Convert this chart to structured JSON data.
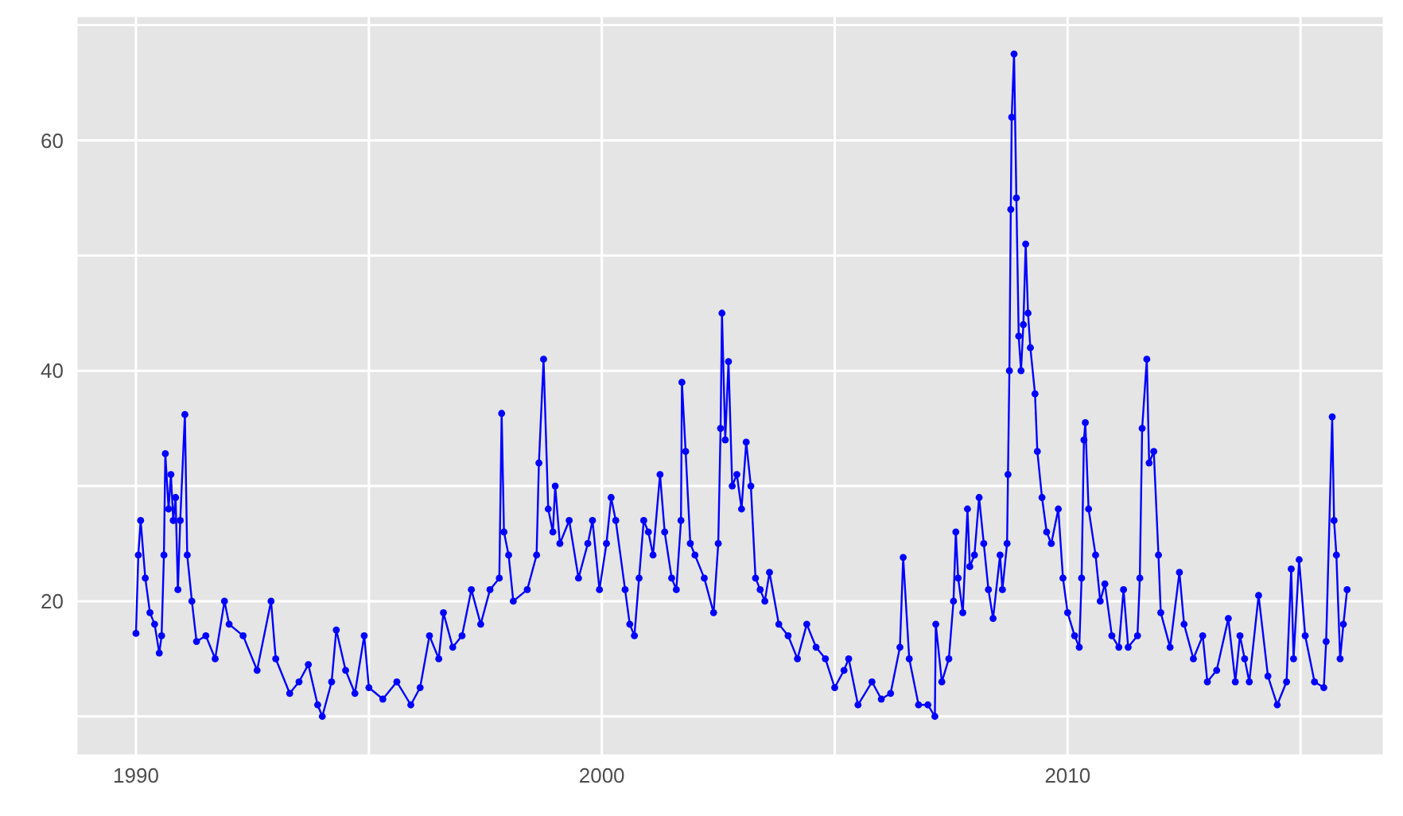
{
  "chart_data": {
    "type": "line",
    "x": [
      1990.0,
      1990.05,
      1990.1,
      1990.2,
      1990.3,
      1990.4,
      1990.5,
      1990.55,
      1990.6,
      1990.63,
      1990.7,
      1990.75,
      1990.8,
      1990.85,
      1990.9,
      1990.95,
      1991.05,
      1991.1,
      1991.2,
      1991.3,
      1991.5,
      1991.7,
      1991.9,
      1992.0,
      1992.3,
      1992.6,
      1992.9,
      1993.0,
      1993.3,
      1993.5,
      1993.7,
      1993.9,
      1994.0,
      1994.2,
      1994.3,
      1994.5,
      1994.7,
      1994.9,
      1995.0,
      1995.3,
      1995.6,
      1995.9,
      1996.1,
      1996.3,
      1996.5,
      1996.6,
      1996.8,
      1997.0,
      1997.2,
      1997.4,
      1997.6,
      1997.8,
      1997.85,
      1997.9,
      1998.0,
      1998.1,
      1998.4,
      1998.6,
      1998.65,
      1998.75,
      1998.85,
      1998.95,
      1999.0,
      1999.1,
      1999.3,
      1999.5,
      1999.7,
      1999.8,
      1999.95,
      2000.1,
      2000.2,
      2000.3,
      2000.5,
      2000.6,
      2000.7,
      2000.8,
      2000.9,
      2001.0,
      2001.1,
      2001.25,
      2001.35,
      2001.5,
      2001.6,
      2001.7,
      2001.72,
      2001.8,
      2001.9,
      2002.0,
      2002.2,
      2002.4,
      2002.5,
      2002.55,
      2002.58,
      2002.65,
      2002.72,
      2002.8,
      2002.9,
      2003.0,
      2003.1,
      2003.2,
      2003.3,
      2003.4,
      2003.5,
      2003.6,
      2003.8,
      2004.0,
      2004.2,
      2004.4,
      2004.6,
      2004.8,
      2005.0,
      2005.2,
      2005.3,
      2005.5,
      2005.8,
      2006.0,
      2006.2,
      2006.4,
      2006.47,
      2006.6,
      2006.8,
      2007.0,
      2007.15,
      2007.17,
      2007.3,
      2007.45,
      2007.55,
      2007.6,
      2007.65,
      2007.75,
      2007.85,
      2007.9,
      2008.0,
      2008.1,
      2008.2,
      2008.3,
      2008.4,
      2008.55,
      2008.6,
      2008.7,
      2008.72,
      2008.75,
      2008.78,
      2008.8,
      2008.85,
      2008.9,
      2008.95,
      2009.0,
      2009.05,
      2009.1,
      2009.15,
      2009.2,
      2009.3,
      2009.35,
      2009.45,
      2009.55,
      2009.65,
      2009.8,
      2009.9,
      2010.0,
      2010.15,
      2010.25,
      2010.3,
      2010.35,
      2010.38,
      2010.45,
      2010.6,
      2010.7,
      2010.8,
      2010.95,
      2011.1,
      2011.2,
      2011.3,
      2011.5,
      2011.55,
      2011.6,
      2011.7,
      2011.75,
      2011.85,
      2011.95,
      2012.0,
      2012.2,
      2012.4,
      2012.5,
      2012.7,
      2012.9,
      2013.0,
      2013.2,
      2013.45,
      2013.6,
      2013.7,
      2013.8,
      2013.9,
      2014.1,
      2014.3,
      2014.5,
      2014.7,
      2014.8,
      2014.85,
      2014.97,
      2015.1,
      2015.3,
      2015.5,
      2015.55,
      2015.68,
      2015.72,
      2015.77,
      2015.85,
      2015.92,
      2016.0
    ],
    "series": [
      {
        "color": "#0000ff",
        "values": [
          17.2,
          24,
          27,
          22,
          19,
          18,
          15.5,
          17,
          24,
          32.8,
          28,
          31,
          27,
          29,
          21,
          27,
          36.2,
          24,
          20,
          16.5,
          17,
          15,
          20,
          18,
          17,
          14,
          20,
          15,
          12,
          13,
          14.5,
          11,
          10,
          13,
          17.5,
          14,
          12,
          17,
          12.5,
          11.5,
          13,
          11,
          12.5,
          17,
          15,
          19,
          16,
          17,
          21,
          18,
          21,
          22,
          36.3,
          26,
          24,
          20,
          21,
          24,
          32,
          41,
          28,
          26,
          30,
          25,
          27,
          22,
          25,
          27,
          21,
          25,
          29,
          27,
          21,
          18,
          17,
          22,
          27,
          26,
          24,
          31,
          26,
          22,
          21,
          27,
          39,
          33,
          25,
          24,
          22,
          19,
          25,
          35,
          45,
          34,
          40.8,
          30,
          31,
          28,
          33.8,
          30,
          22,
          21,
          20,
          22.5,
          18,
          17,
          15,
          18,
          16,
          15,
          12.5,
          14,
          15,
          11,
          13,
          11.5,
          12,
          16,
          23.8,
          15,
          11,
          11,
          10,
          18,
          13,
          15,
          20,
          26,
          22,
          19,
          28,
          23,
          24,
          29,
          25,
          21,
          18.5,
          24,
          21,
          25,
          31,
          40,
          54,
          62,
          67.5,
          55,
          43,
          40,
          44,
          51,
          45,
          42,
          38,
          33,
          29,
          26,
          25,
          28,
          22,
          19,
          17,
          16,
          22,
          34,
          35.5,
          28,
          24,
          20,
          21.5,
          17,
          16,
          21,
          16,
          17,
          22,
          35,
          41,
          32,
          33,
          24,
          19,
          16,
          22.5,
          18,
          15,
          17,
          13,
          14,
          18.5,
          13,
          17,
          15,
          13,
          20.5,
          13.5,
          11,
          13,
          22.8,
          15,
          23.6,
          17,
          13,
          12.5,
          16.5,
          36,
          27,
          24,
          15,
          18,
          21
        ]
      }
    ],
    "xlim": [
      1988.72,
      2016.79
    ],
    "ylim": [
      6.6,
      70.8
    ],
    "xticks": [
      1990,
      {
        "value": 1995,
        "label": null
      },
      2000,
      {
        "value": 2005,
        "label": null
      },
      2010,
      {
        "value": 2015,
        "label": null
      }
    ],
    "yticks": [
      {
        "value": 10,
        "label": null
      },
      20,
      {
        "value": 30,
        "label": null
      },
      40,
      {
        "value": 50,
        "label": null
      },
      60,
      {
        "value": 70,
        "label": null
      }
    ],
    "grid": true,
    "marker": "circle",
    "line_style": "solid"
  }
}
